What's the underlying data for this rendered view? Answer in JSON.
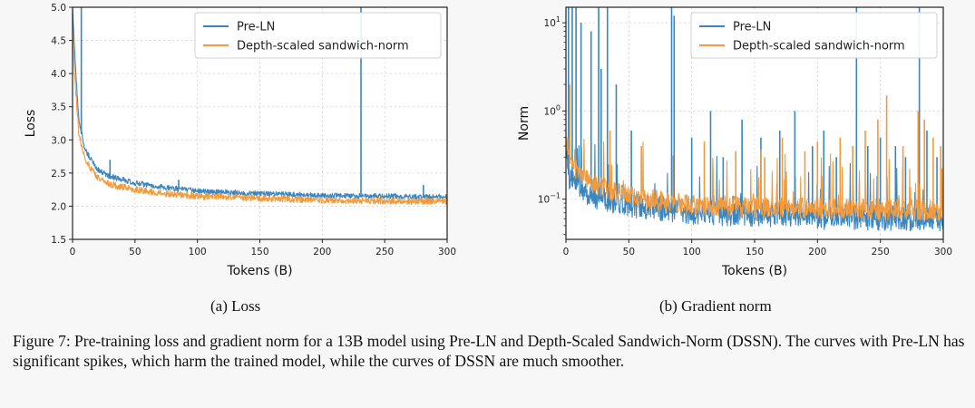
{
  "chart_data": [
    {
      "type": "line",
      "title": "",
      "xlabel": "Tokens (B)",
      "ylabel": "Loss",
      "xlim": [
        0,
        300
      ],
      "ylim": [
        1.5,
        5.0
      ],
      "yscale": "linear",
      "xticks": [
        "0",
        "50",
        "100",
        "150",
        "200",
        "250",
        "300"
      ],
      "yticks": [
        "1.5",
        "2.0",
        "2.5",
        "3.0",
        "3.5",
        "4.0",
        "4.5",
        "5.0"
      ],
      "grid": true,
      "legend_position": "top-right",
      "series": [
        {
          "name": "Pre-LN",
          "color": "#3a86c0",
          "x": [
            0,
            2,
            5,
            10,
            20,
            30,
            50,
            75,
            100,
            150,
            200,
            250,
            300
          ],
          "y": [
            5.0,
            4.2,
            3.3,
            2.85,
            2.55,
            2.45,
            2.35,
            2.28,
            2.23,
            2.19,
            2.16,
            2.15,
            2.14
          ],
          "spikes": [
            [
              7,
              5.0
            ],
            [
              30,
              2.7
            ],
            [
              85,
              2.4
            ],
            [
              231,
              5.0
            ],
            [
              281,
              2.32
            ]
          ]
        },
        {
          "name": "Depth-scaled sandwich-norm",
          "color": "#f39a3c",
          "x": [
            0,
            2,
            5,
            10,
            20,
            30,
            50,
            75,
            100,
            150,
            200,
            250,
            300
          ],
          "y": [
            4.6,
            3.9,
            3.1,
            2.7,
            2.42,
            2.33,
            2.25,
            2.19,
            2.15,
            2.12,
            2.09,
            2.08,
            2.07
          ]
        }
      ]
    },
    {
      "type": "line",
      "title": "",
      "xlabel": "Tokens (B)",
      "ylabel": "Norm",
      "xlim": [
        0,
        300
      ],
      "ylim": [
        0.035,
        15
      ],
      "yscale": "log",
      "xticks": [
        "0",
        "50",
        "100",
        "150",
        "200",
        "250",
        "300"
      ],
      "yticks": [
        {
          "base": "10",
          "exp": "−1",
          "value": 0.1
        },
        {
          "base": "10",
          "exp": "0",
          "value": 1
        },
        {
          "base": "10",
          "exp": "1",
          "value": 10
        }
      ],
      "grid": true,
      "legend_position": "top-right",
      "series": [
        {
          "name": "Pre-LN",
          "color": "#3a86c0",
          "x": [
            0,
            3,
            10,
            20,
            40,
            60,
            100,
            150,
            200,
            250,
            300
          ],
          "y": [
            0.3,
            0.15,
            0.12,
            0.1,
            0.085,
            0.075,
            0.065,
            0.06,
            0.057,
            0.055,
            0.055
          ],
          "spikes": [
            [
              2,
              15
            ],
            [
              5,
              15
            ],
            [
              8,
              15
            ],
            [
              12,
              10
            ],
            [
              20,
              8
            ],
            [
              26,
              15
            ],
            [
              28,
              3
            ],
            [
              33,
              15
            ],
            [
              40,
              2
            ],
            [
              52,
              0.6
            ],
            [
              60,
              0.3
            ],
            [
              84,
              15
            ],
            [
              86,
              12
            ],
            [
              100,
              0.5
            ],
            [
              115,
              1.0
            ],
            [
              125,
              0.3
            ],
            [
              140,
              0.8
            ],
            [
              155,
              0.5
            ],
            [
              170,
              0.6
            ],
            [
              182,
              1.0
            ],
            [
              196,
              0.4
            ],
            [
              205,
              0.6
            ],
            [
              215,
              0.3
            ],
            [
              231,
              15
            ],
            [
              240,
              0.4
            ],
            [
              250,
              0.5
            ],
            [
              262,
              0.4
            ],
            [
              270,
              0.3
            ],
            [
              281,
              15
            ],
            [
              287,
              0.6
            ],
            [
              295,
              0.3
            ]
          ]
        },
        {
          "name": "Depth-scaled sandwich-norm",
          "color": "#f39a3c",
          "x": [
            0,
            3,
            10,
            20,
            40,
            60,
            100,
            150,
            200,
            250,
            300
          ],
          "y": [
            0.5,
            0.25,
            0.18,
            0.14,
            0.11,
            0.095,
            0.08,
            0.075,
            0.072,
            0.07,
            0.068
          ],
          "spikes": [
            [
              3,
              2.0
            ],
            [
              35,
              0.6
            ],
            [
              60,
              0.4
            ],
            [
              110,
              0.45
            ],
            [
              135,
              0.35
            ],
            [
              158,
              0.3
            ],
            [
              172,
              0.5
            ],
            [
              190,
              0.35
            ],
            [
              200,
              0.45
            ],
            [
              218,
              0.5
            ],
            [
              228,
              0.4
            ],
            [
              238,
              0.6
            ],
            [
              248,
              0.8
            ],
            [
              255,
              1.5
            ],
            [
              268,
              0.4
            ],
            [
              280,
              1.0
            ],
            [
              285,
              0.8
            ],
            [
              292,
              0.5
            ],
            [
              298,
              0.4
            ]
          ]
        }
      ]
    }
  ],
  "subcaptions": {
    "a": "(a) Loss",
    "b": "(b) Gradient norm"
  },
  "caption": "Figure 7: Pre-training loss and gradient norm for a 13B model using Pre-LN and Depth-Scaled Sandwich-Norm (DSSN). The curves with Pre-LN has significant spikes, which harm the trained model, while the curves of DSSN are much smoother."
}
